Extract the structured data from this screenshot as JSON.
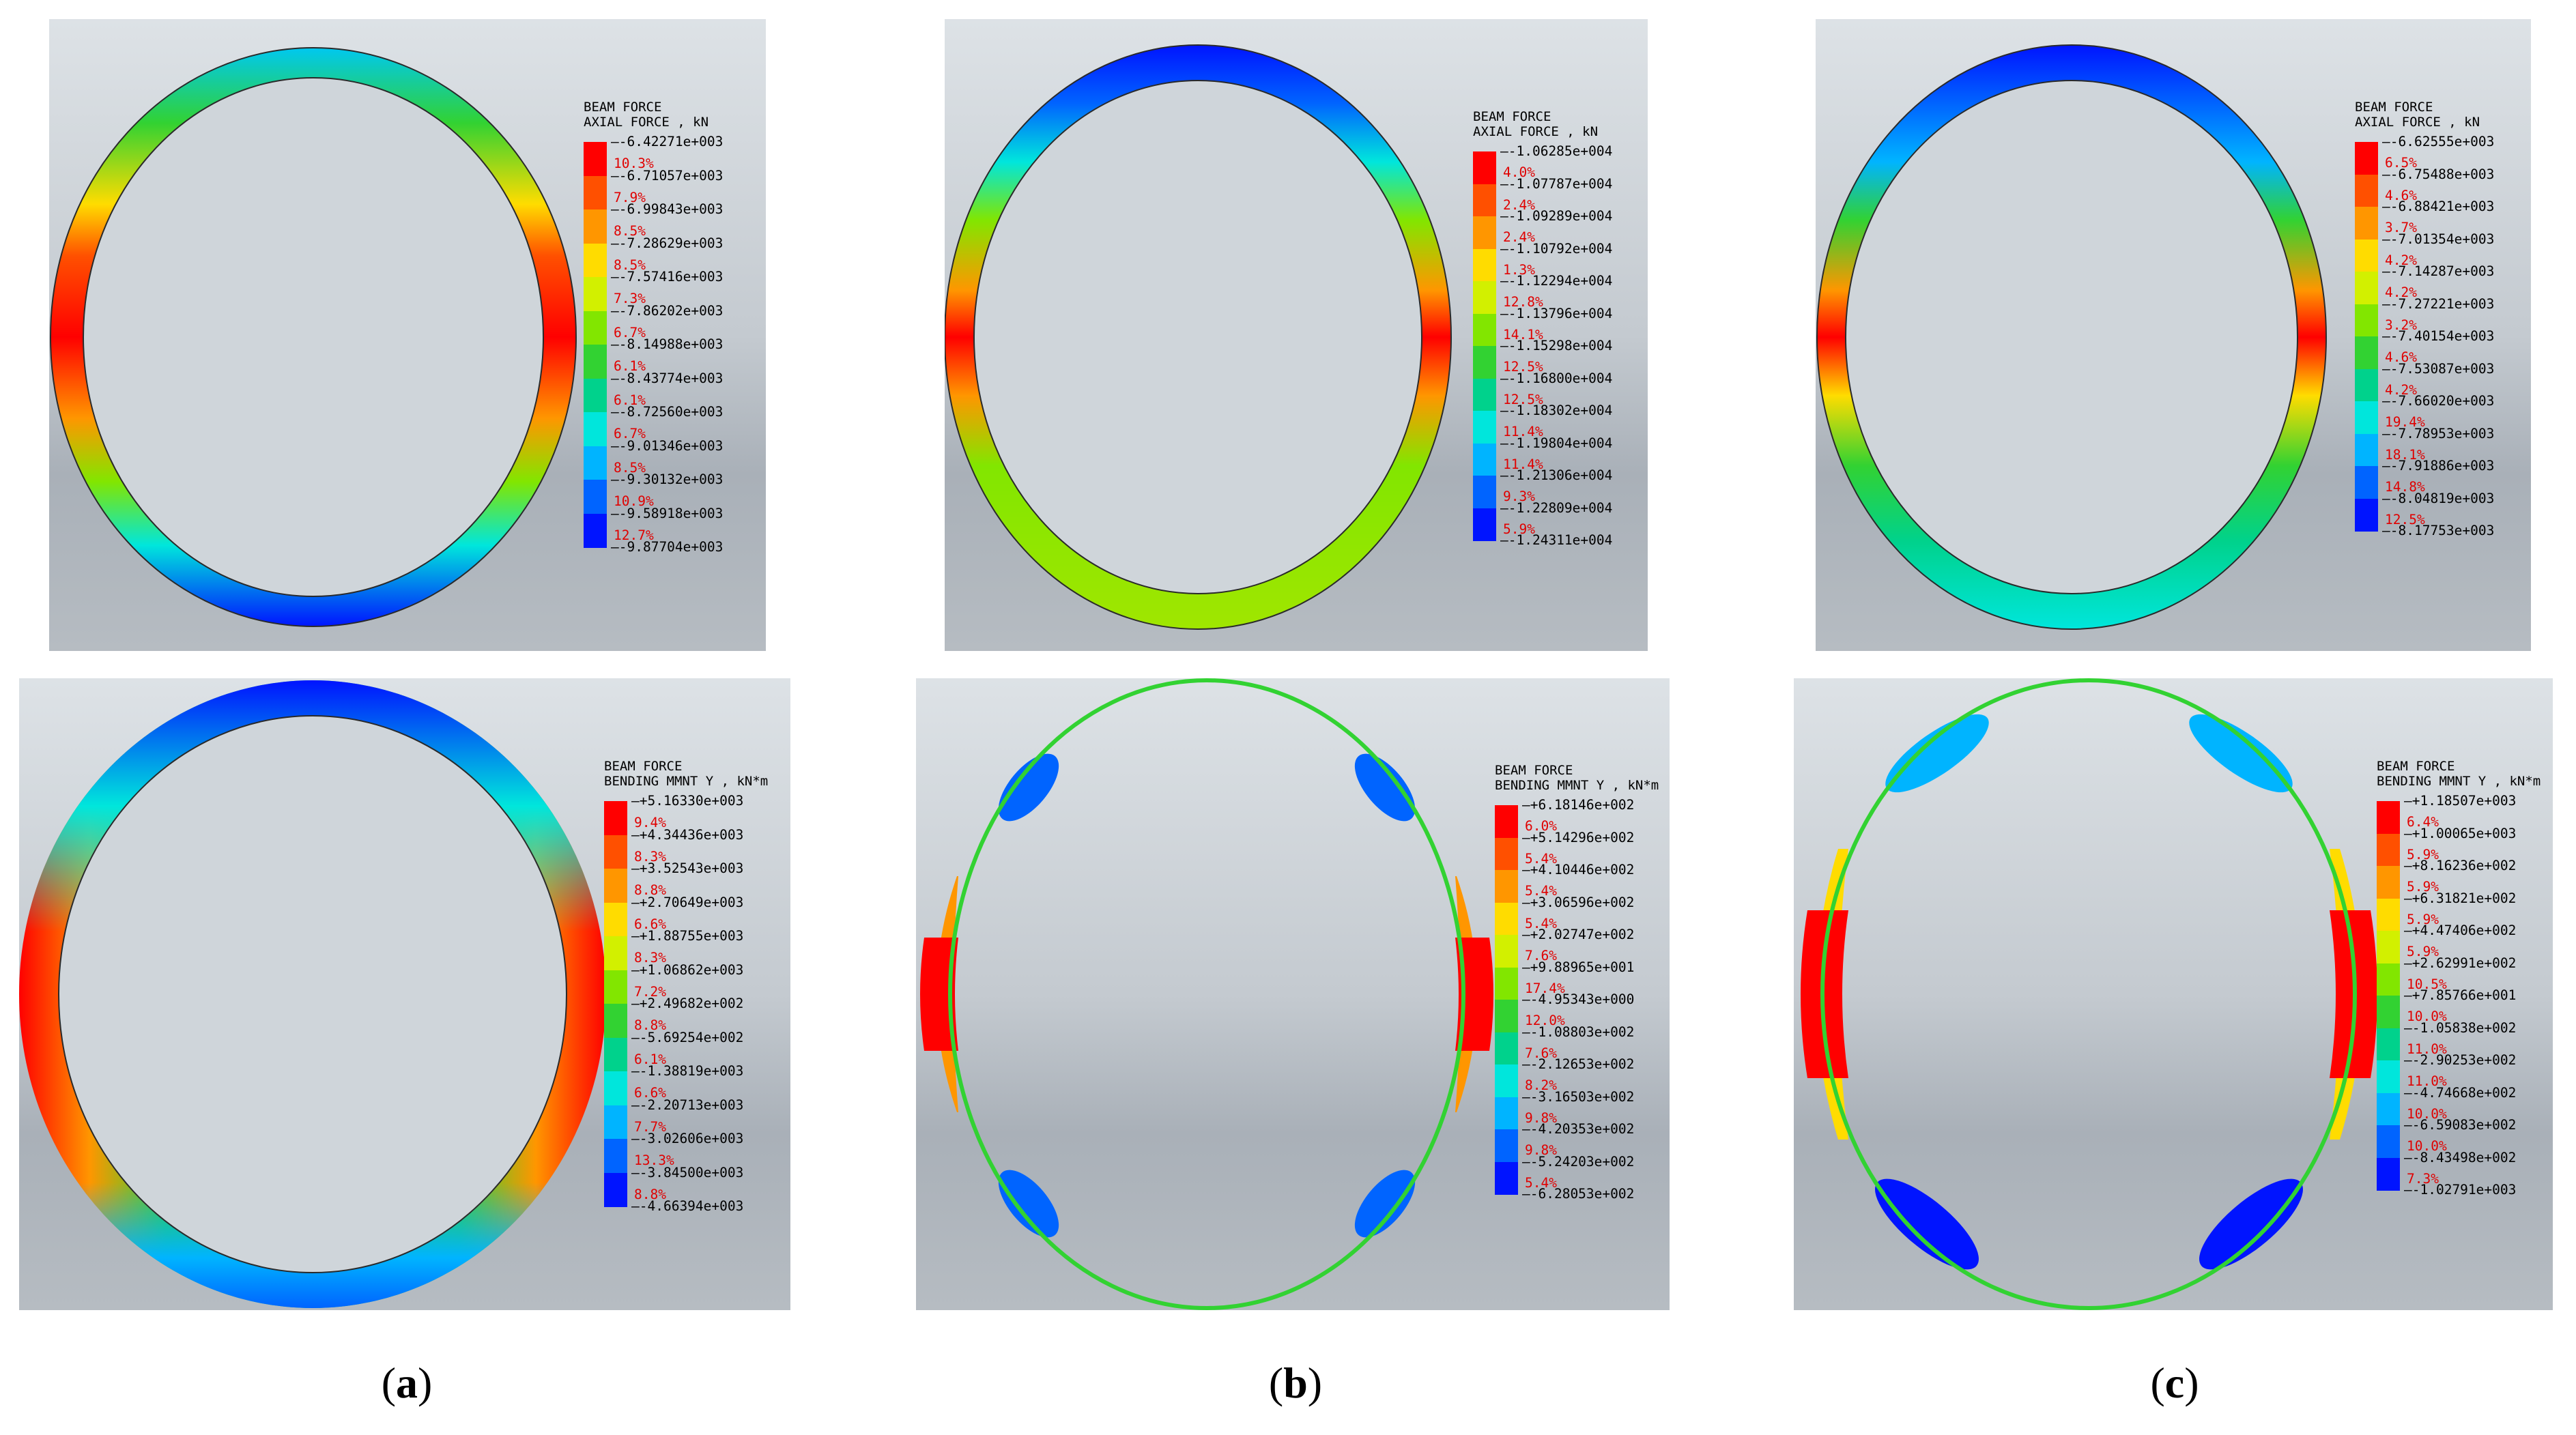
{
  "colors": [
    "#ff0000",
    "#ff5000",
    "#ff9600",
    "#ffdc00",
    "#d2f000",
    "#82e600",
    "#32d232",
    "#00d28c",
    "#00e6dc",
    "#00b4ff",
    "#0064ff",
    "#0014ff"
  ],
  "panels": [
    {
      "id": "a-top",
      "title1": "BEAM FORCE",
      "title2": "AXIAL FORCE , kN",
      "ticks": [
        "-6.42271e+003",
        "-6.71057e+003",
        "-6.99843e+003",
        "-7.28629e+003",
        "-7.57416e+003",
        "-7.86202e+003",
        "-8.14988e+003",
        "-8.43774e+003",
        "-8.72560e+003",
        "-9.01346e+003",
        "-9.30132e+003",
        "-9.58918e+003",
        "-9.87704e+003"
      ],
      "pcts": [
        "10.3%",
        "7.9%",
        "8.5%",
        "8.5%",
        "7.3%",
        "6.7%",
        "6.1%",
        "6.1%",
        "6.7%",
        "8.5%",
        "10.9%",
        "12.7%"
      ]
    },
    {
      "id": "b-top",
      "title1": "BEAM FORCE",
      "title2": "AXIAL FORCE , kN",
      "ticks": [
        "-1.06285e+004",
        "-1.07787e+004",
        "-1.09289e+004",
        "-1.10792e+004",
        "-1.12294e+004",
        "-1.13796e+004",
        "-1.15298e+004",
        "-1.16800e+004",
        "-1.18302e+004",
        "-1.19804e+004",
        "-1.21306e+004",
        "-1.22809e+004",
        "-1.24311e+004"
      ],
      "pcts": [
        "4.0%",
        "2.4%",
        "2.4%",
        "1.3%",
        "12.8%",
        "14.1%",
        "12.5%",
        "12.5%",
        "11.4%",
        "11.4%",
        "9.3%",
        "5.9%"
      ]
    },
    {
      "id": "c-top",
      "title1": "BEAM FORCE",
      "title2": "AXIAL FORCE , kN",
      "ticks": [
        "-6.62555e+003",
        "-6.75488e+003",
        "-6.88421e+003",
        "-7.01354e+003",
        "-7.14287e+003",
        "-7.27221e+003",
        "-7.40154e+003",
        "-7.53087e+003",
        "-7.66020e+003",
        "-7.78953e+003",
        "-7.91886e+003",
        "-8.04819e+003",
        "-8.17753e+003"
      ],
      "pcts": [
        "6.5%",
        "4.6%",
        "3.7%",
        "4.2%",
        "4.2%",
        "3.2%",
        "4.6%",
        "4.2%",
        "19.4%",
        "18.1%",
        "14.8%",
        "12.5%"
      ]
    },
    {
      "id": "a-bot",
      "title1": "BEAM FORCE",
      "title2": "BENDING MMNT Y , kN*m",
      "ticks": [
        "+5.16330e+003",
        "+4.34436e+003",
        "+3.52543e+003",
        "+2.70649e+003",
        "+1.88755e+003",
        "+1.06862e+003",
        "+2.49682e+002",
        "-5.69254e+002",
        "-1.38819e+003",
        "-2.20713e+003",
        "-3.02606e+003",
        "-3.84500e+003",
        "-4.66394e+003"
      ],
      "pcts": [
        "9.4%",
        "8.3%",
        "8.8%",
        "6.6%",
        "8.3%",
        "7.2%",
        "8.8%",
        "6.1%",
        "6.6%",
        "7.7%",
        "13.3%",
        "8.8%"
      ]
    },
    {
      "id": "b-bot",
      "title1": "BEAM FORCE",
      "title2": "BENDING MMNT Y , kN*m",
      "ticks": [
        "+6.18146e+002",
        "+5.14296e+002",
        "+4.10446e+002",
        "+3.06596e+002",
        "+2.02747e+002",
        "+9.88965e+001",
        "-4.95343e+000",
        "-1.08803e+002",
        "-2.12653e+002",
        "-3.16503e+002",
        "-4.20353e+002",
        "-5.24203e+002",
        "-6.28053e+002"
      ],
      "pcts": [
        "6.0%",
        "5.4%",
        "5.4%",
        "5.4%",
        "7.6%",
        "17.4%",
        "12.0%",
        "7.6%",
        "8.2%",
        "9.8%",
        "9.8%",
        "5.4%"
      ]
    },
    {
      "id": "c-bot",
      "title1": "BEAM FORCE",
      "title2": "BENDING MMNT Y , kN*m",
      "ticks": [
        "+1.18507e+003",
        "+1.00065e+003",
        "+8.16236e+002",
        "+6.31821e+002",
        "+4.47406e+002",
        "+2.62991e+002",
        "+7.85766e+001",
        "-1.05838e+002",
        "-2.90253e+002",
        "-4.74668e+002",
        "-6.59083e+002",
        "-8.43498e+002",
        "-1.02791e+003"
      ],
      "pcts": [
        "6.4%",
        "5.9%",
        "5.9%",
        "5.9%",
        "5.9%",
        "10.5%",
        "10.0%",
        "11.0%",
        "11.0%",
        "10.0%",
        "10.0%",
        "7.3%"
      ]
    }
  ],
  "captions": [
    "a",
    "b",
    "c"
  ]
}
